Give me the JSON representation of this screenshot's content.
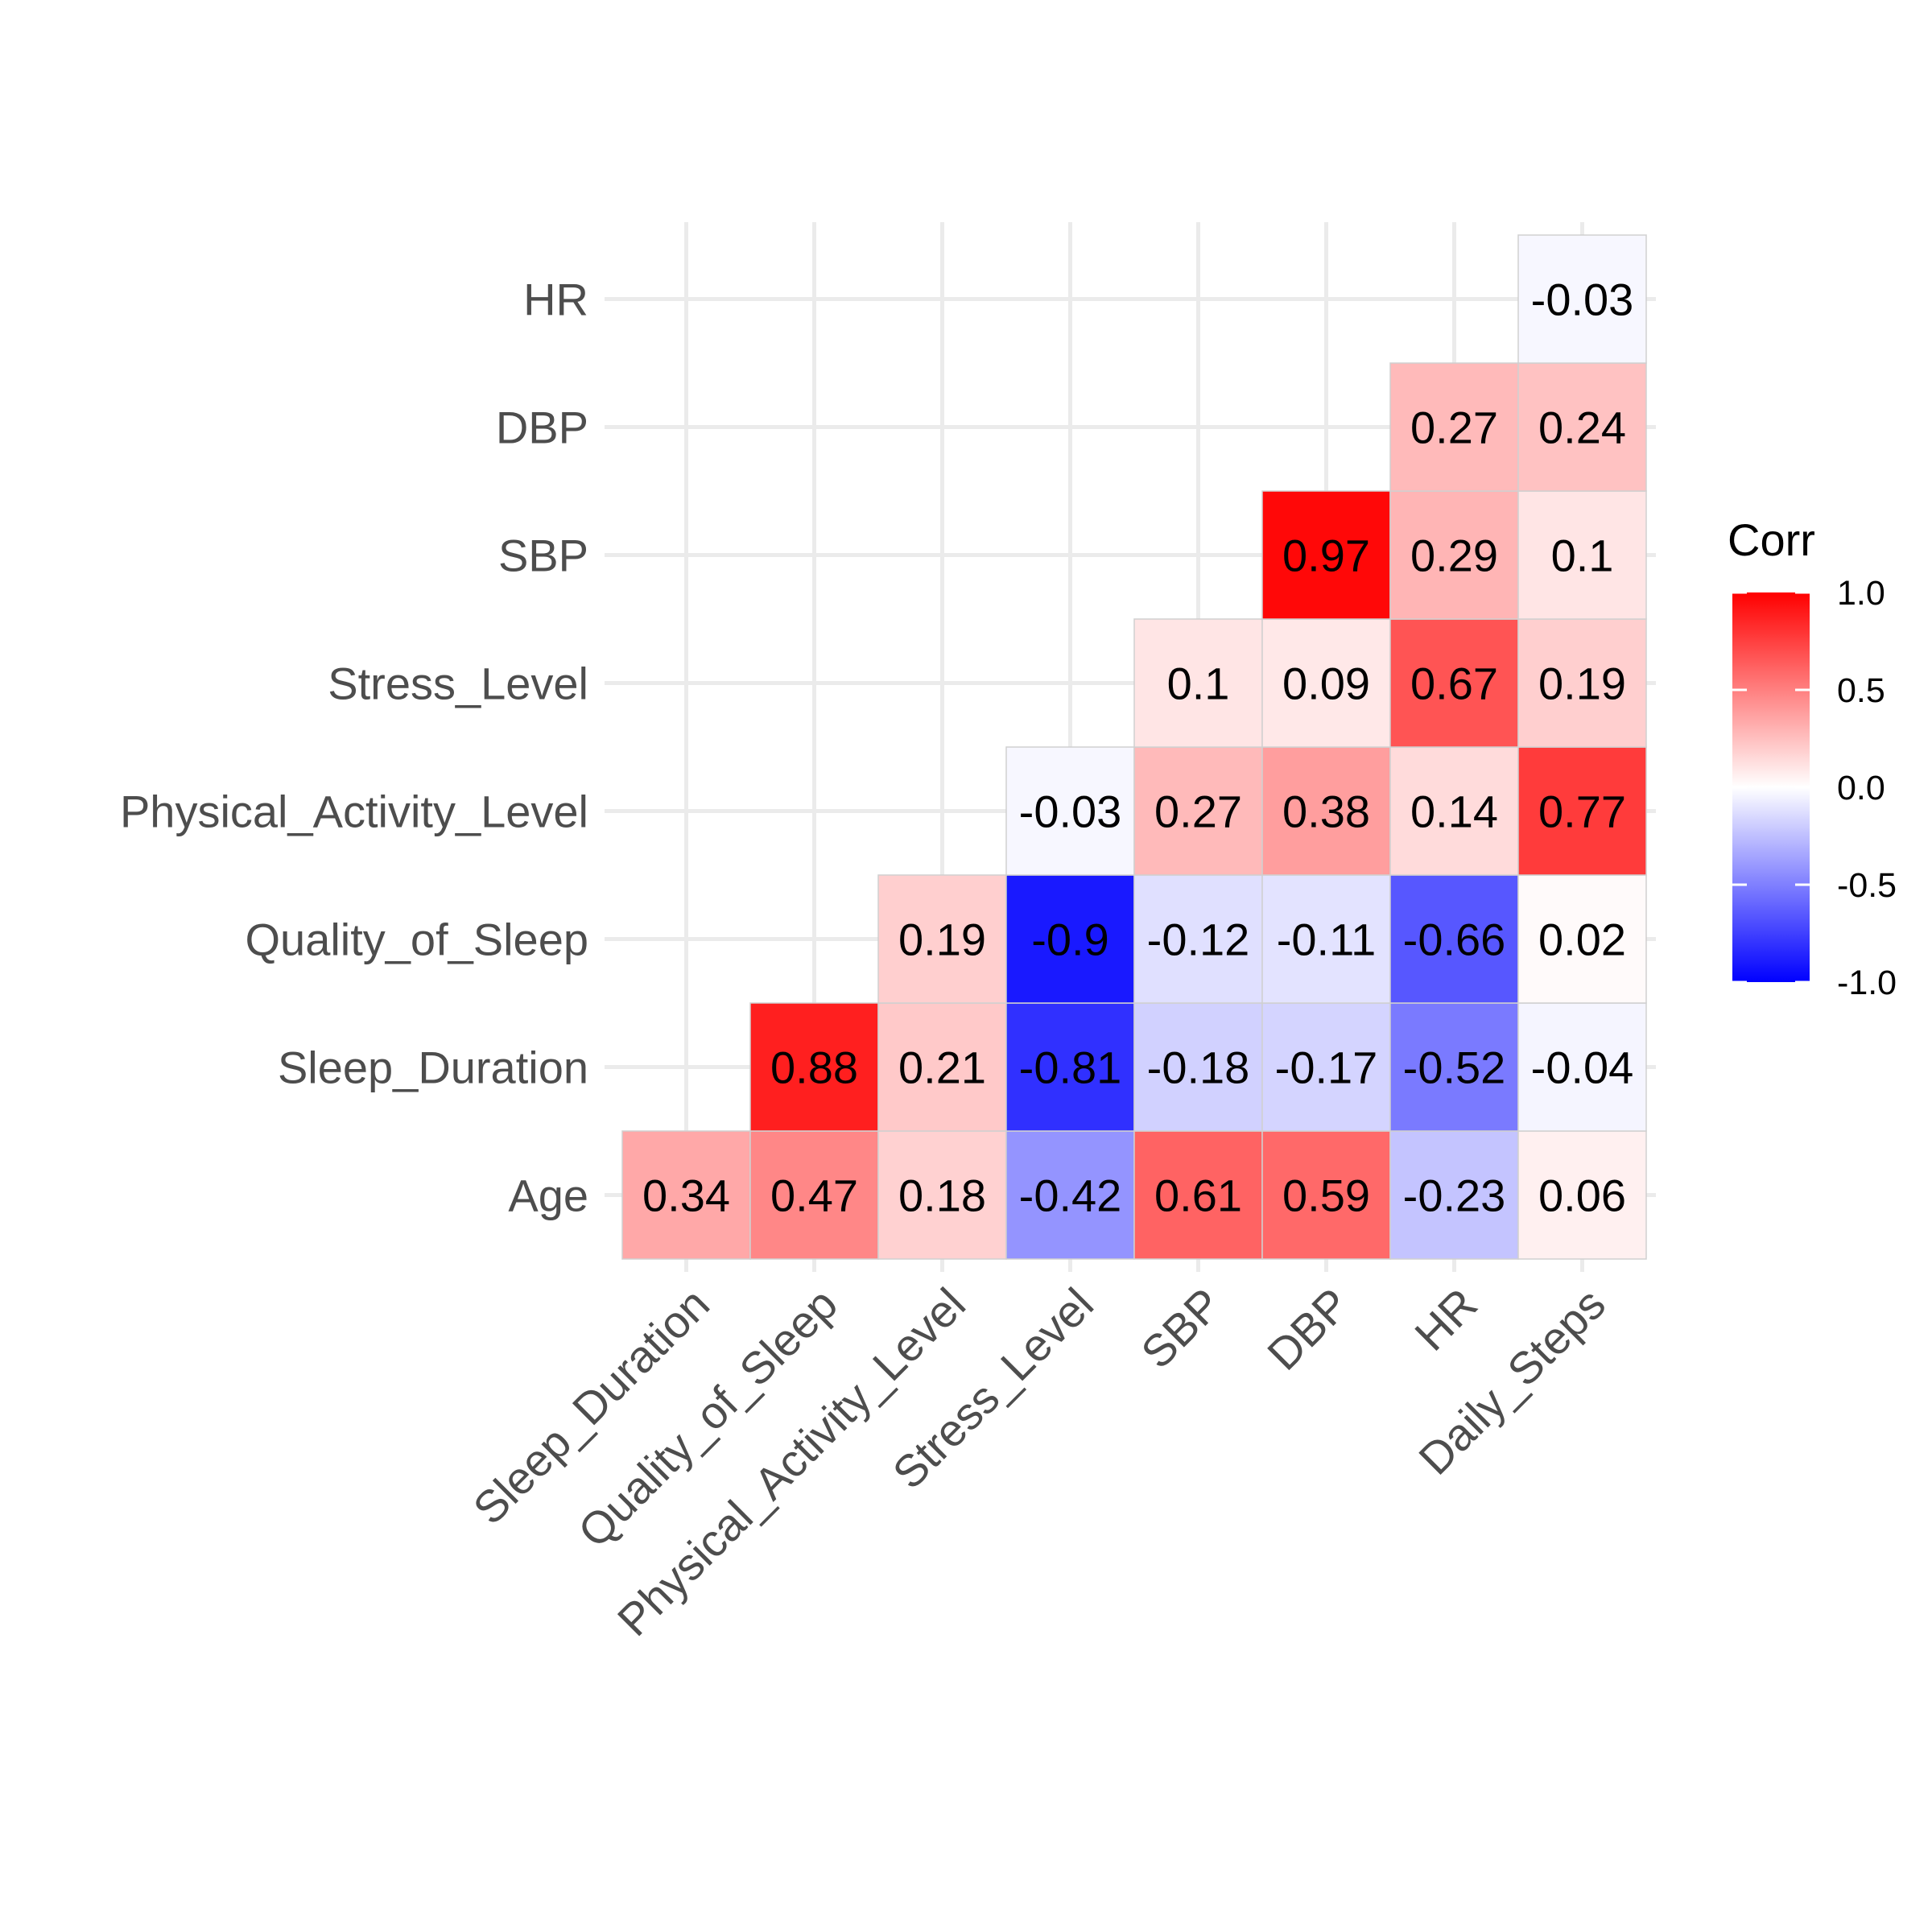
{
  "chart_data": {
    "type": "heatmap",
    "title": "",
    "xlabel": "",
    "ylabel": "",
    "x_categories": [
      "Age",
      "Sleep_Duration",
      "Quality_of_Sleep",
      "Physical_Activity_Level",
      "Stress_Level",
      "SBP",
      "DBP",
      "HR",
      "Daily_Steps"
    ],
    "y_categories": [
      "Age",
      "Sleep_Duration",
      "Quality_of_Sleep",
      "Physical_Activity_Level",
      "Stress_Level",
      "SBP",
      "DBP",
      "HR"
    ],
    "x_tick_labels": [
      "Sleep_Duration",
      "Quality_of_Sleep",
      "Physical_Activity_Level",
      "Stress_Level",
      "SBP",
      "DBP",
      "HR",
      "Daily_Steps"
    ],
    "y_tick_labels": [
      "Age",
      "Sleep_Duration",
      "Quality_of_Sleep",
      "Physical_Activity_Level",
      "Stress_Level",
      "SBP",
      "DBP",
      "HR"
    ],
    "cells": [
      {
        "row": "Age",
        "col": "Sleep_Duration",
        "value": 0.34,
        "label": "0.34"
      },
      {
        "row": "Age",
        "col": "Quality_of_Sleep",
        "value": 0.47,
        "label": "0.47"
      },
      {
        "row": "Age",
        "col": "Physical_Activity_Level",
        "value": 0.18,
        "label": "0.18"
      },
      {
        "row": "Age",
        "col": "Stress_Level",
        "value": -0.42,
        "label": "-0.42"
      },
      {
        "row": "Age",
        "col": "SBP",
        "value": 0.61,
        "label": "0.61"
      },
      {
        "row": "Age",
        "col": "DBP",
        "value": 0.59,
        "label": "0.59"
      },
      {
        "row": "Age",
        "col": "HR",
        "value": -0.23,
        "label": "-0.23"
      },
      {
        "row": "Age",
        "col": "Daily_Steps",
        "value": 0.06,
        "label": "0.06"
      },
      {
        "row": "Sleep_Duration",
        "col": "Quality_of_Sleep",
        "value": 0.88,
        "label": "0.88"
      },
      {
        "row": "Sleep_Duration",
        "col": "Physical_Activity_Level",
        "value": 0.21,
        "label": "0.21"
      },
      {
        "row": "Sleep_Duration",
        "col": "Stress_Level",
        "value": -0.81,
        "label": "-0.81"
      },
      {
        "row": "Sleep_Duration",
        "col": "SBP",
        "value": -0.18,
        "label": "-0.18"
      },
      {
        "row": "Sleep_Duration",
        "col": "DBP",
        "value": -0.17,
        "label": "-0.17"
      },
      {
        "row": "Sleep_Duration",
        "col": "HR",
        "value": -0.52,
        "label": "-0.52"
      },
      {
        "row": "Sleep_Duration",
        "col": "Daily_Steps",
        "value": -0.04,
        "label": "-0.04"
      },
      {
        "row": "Quality_of_Sleep",
        "col": "Physical_Activity_Level",
        "value": 0.19,
        "label": "0.19"
      },
      {
        "row": "Quality_of_Sleep",
        "col": "Stress_Level",
        "value": -0.9,
        "label": "-0.9"
      },
      {
        "row": "Quality_of_Sleep",
        "col": "SBP",
        "value": -0.12,
        "label": "-0.12"
      },
      {
        "row": "Quality_of_Sleep",
        "col": "DBP",
        "value": -0.11,
        "label": "-0.11"
      },
      {
        "row": "Quality_of_Sleep",
        "col": "HR",
        "value": -0.66,
        "label": "-0.66"
      },
      {
        "row": "Quality_of_Sleep",
        "col": "Daily_Steps",
        "value": 0.02,
        "label": "0.02"
      },
      {
        "row": "Physical_Activity_Level",
        "col": "Stress_Level",
        "value": -0.03,
        "label": "-0.03"
      },
      {
        "row": "Physical_Activity_Level",
        "col": "SBP",
        "value": 0.27,
        "label": "0.27"
      },
      {
        "row": "Physical_Activity_Level",
        "col": "DBP",
        "value": 0.38,
        "label": "0.38"
      },
      {
        "row": "Physical_Activity_Level",
        "col": "HR",
        "value": 0.14,
        "label": "0.14"
      },
      {
        "row": "Physical_Activity_Level",
        "col": "Daily_Steps",
        "value": 0.77,
        "label": "0.77"
      },
      {
        "row": "Stress_Level",
        "col": "SBP",
        "value": 0.1,
        "label": "0.1"
      },
      {
        "row": "Stress_Level",
        "col": "DBP",
        "value": 0.09,
        "label": "0.09"
      },
      {
        "row": "Stress_Level",
        "col": "HR",
        "value": 0.67,
        "label": "0.67"
      },
      {
        "row": "Stress_Level",
        "col": "Daily_Steps",
        "value": 0.19,
        "label": "0.19"
      },
      {
        "row": "SBP",
        "col": "DBP",
        "value": 0.97,
        "label": "0.97"
      },
      {
        "row": "SBP",
        "col": "HR",
        "value": 0.29,
        "label": "0.29"
      },
      {
        "row": "SBP",
        "col": "Daily_Steps",
        "value": 0.1,
        "label": "0.1"
      },
      {
        "row": "DBP",
        "col": "HR",
        "value": 0.27,
        "label": "0.27"
      },
      {
        "row": "DBP",
        "col": "Daily_Steps",
        "value": 0.24,
        "label": "0.24"
      },
      {
        "row": "HR",
        "col": "Daily_Steps",
        "value": -0.03,
        "label": "-0.03"
      }
    ],
    "color_scale": {
      "low": "#0000FF",
      "mid": "#FFFFFF",
      "high": "#FF0000",
      "limits": [
        -1,
        1
      ]
    },
    "legend": {
      "title": "Corr",
      "position": "right",
      "ticks": [
        1.0,
        0.5,
        0.0,
        -0.5,
        -1.0
      ],
      "tick_labels": [
        "1.0",
        "0.5",
        "0.0",
        "-0.5",
        "-1.0"
      ]
    },
    "grid": true
  }
}
